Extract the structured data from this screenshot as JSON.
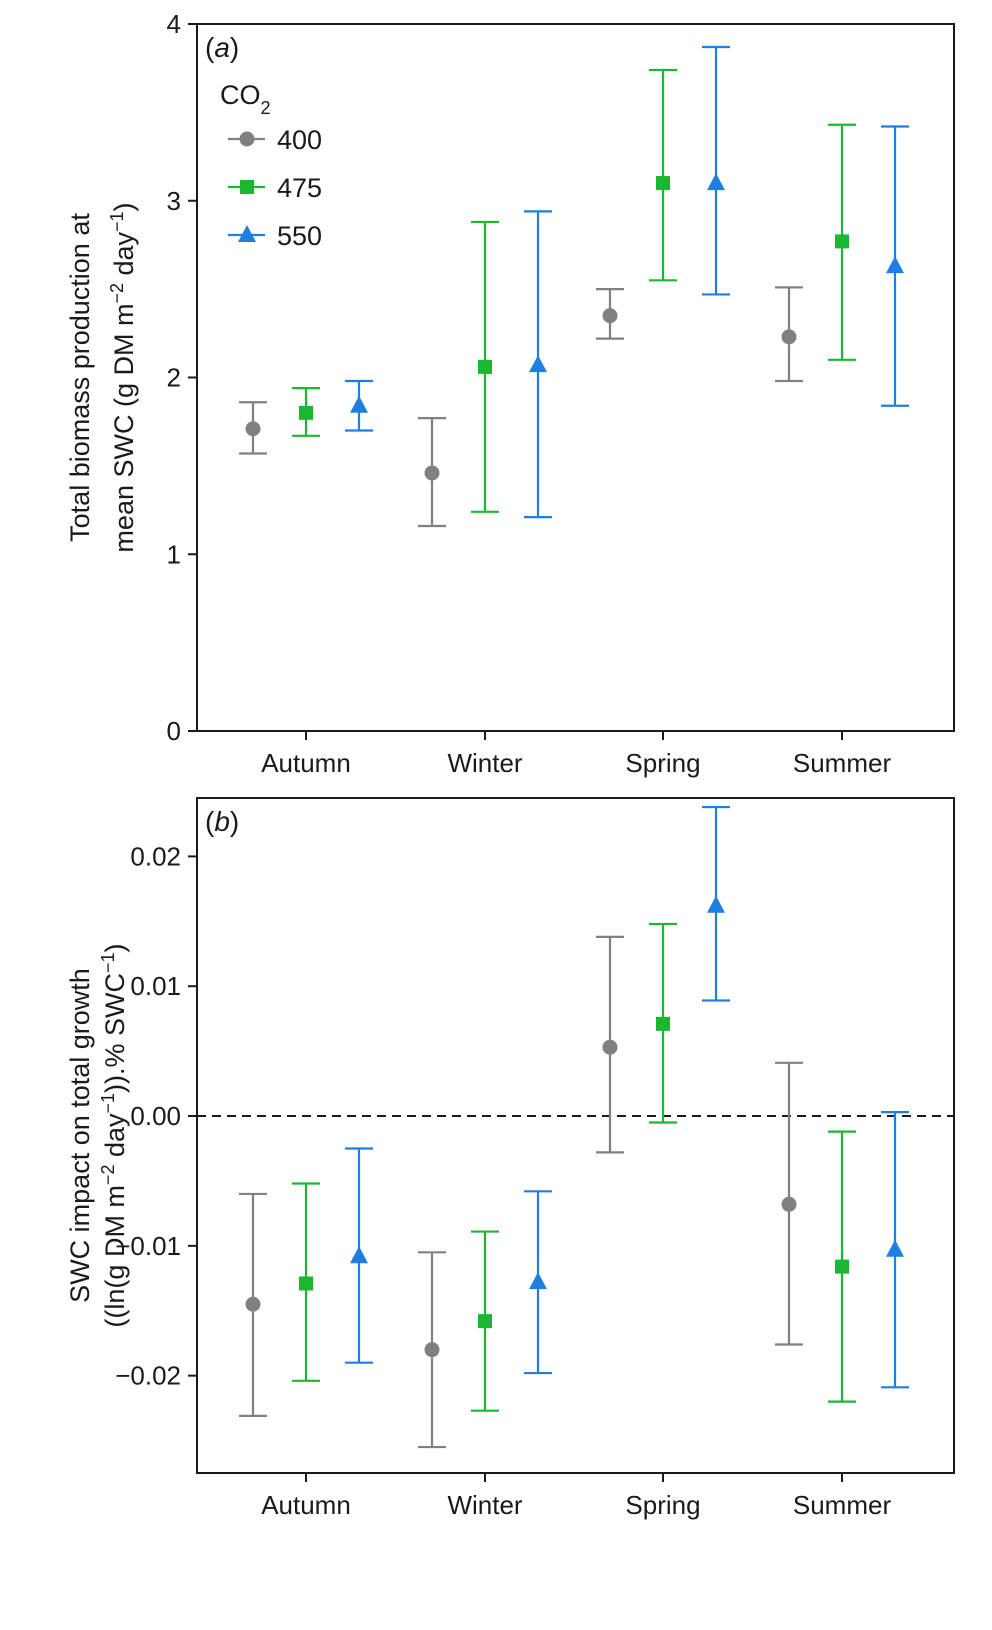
{
  "chart_data": [
    {
      "type": "scatter",
      "panel_label": "(a)",
      "title": "",
      "xlabel": "",
      "ylabel_line1": "Total biomass production at",
      "ylabel_line2": "mean SWC (g DM m−2 day−1)",
      "categories": [
        "Autumn",
        "Winter",
        "Spring",
        "Summer"
      ],
      "ylim": [
        0,
        4
      ],
      "yticks": [
        0,
        1,
        2,
        3,
        4
      ],
      "ytick_labels": [
        "0",
        "1",
        "2",
        "3",
        "4"
      ],
      "legend_title": "CO2",
      "legend_position": "top-left",
      "series": [
        {
          "name": "400",
          "color": "#808080",
          "marker": "circle",
          "values": [
            1.71,
            1.46,
            2.35,
            2.23
          ],
          "lower": [
            1.57,
            1.16,
            2.22,
            1.98
          ],
          "upper": [
            1.86,
            1.77,
            2.5,
            2.51
          ]
        },
        {
          "name": "475",
          "color": "#1ab832",
          "marker": "square",
          "values": [
            1.8,
            2.06,
            3.1,
            2.77
          ],
          "lower": [
            1.67,
            1.24,
            2.55,
            2.1
          ],
          "upper": [
            1.94,
            2.88,
            3.74,
            3.43
          ]
        },
        {
          "name": "550",
          "color": "#1f7fe0",
          "marker": "triangle",
          "values": [
            1.84,
            2.07,
            3.1,
            2.63
          ],
          "lower": [
            1.7,
            1.21,
            2.47,
            1.84
          ],
          "upper": [
            1.98,
            2.94,
            3.87,
            3.42
          ]
        }
      ]
    },
    {
      "type": "scatter",
      "panel_label": "(b)",
      "title": "",
      "xlabel": "",
      "ylabel_line1": "SWC impact on total growth",
      "ylabel_line2": "((ln(g DM m−2 day−1)).% SWC−1)",
      "categories": [
        "Autumn",
        "Winter",
        "Spring",
        "Summer"
      ],
      "ylim": [
        -0.0275,
        0.0245
      ],
      "yticks": [
        -0.02,
        -0.01,
        0.0,
        0.01,
        0.02
      ],
      "ytick_labels": [
        "−0.02",
        "−0.01",
        "0.00",
        "0.01",
        "0.02"
      ],
      "reference_line": 0.0,
      "series": [
        {
          "name": "400",
          "color": "#808080",
          "marker": "circle",
          "values": [
            -0.0145,
            -0.018,
            0.0053,
            -0.0068
          ],
          "lower": [
            -0.0231,
            -0.0255,
            -0.0028,
            -0.0176
          ],
          "upper": [
            -0.006,
            -0.0105,
            0.0138,
            0.0041
          ]
        },
        {
          "name": "475",
          "color": "#1ab832",
          "marker": "square",
          "values": [
            -0.0129,
            -0.0158,
            0.0071,
            -0.0116
          ],
          "lower": [
            -0.0204,
            -0.0227,
            -0.0005,
            -0.022
          ],
          "upper": [
            -0.0052,
            -0.0089,
            0.0148,
            -0.0012
          ]
        },
        {
          "name": "550",
          "color": "#1f7fe0",
          "marker": "triangle",
          "values": [
            -0.0108,
            -0.0128,
            0.0162,
            -0.0103
          ],
          "lower": [
            -0.019,
            -0.0198,
            0.0089,
            -0.0209
          ],
          "upper": [
            -0.0025,
            -0.0058,
            0.0238,
            0.0003
          ]
        }
      ]
    }
  ]
}
